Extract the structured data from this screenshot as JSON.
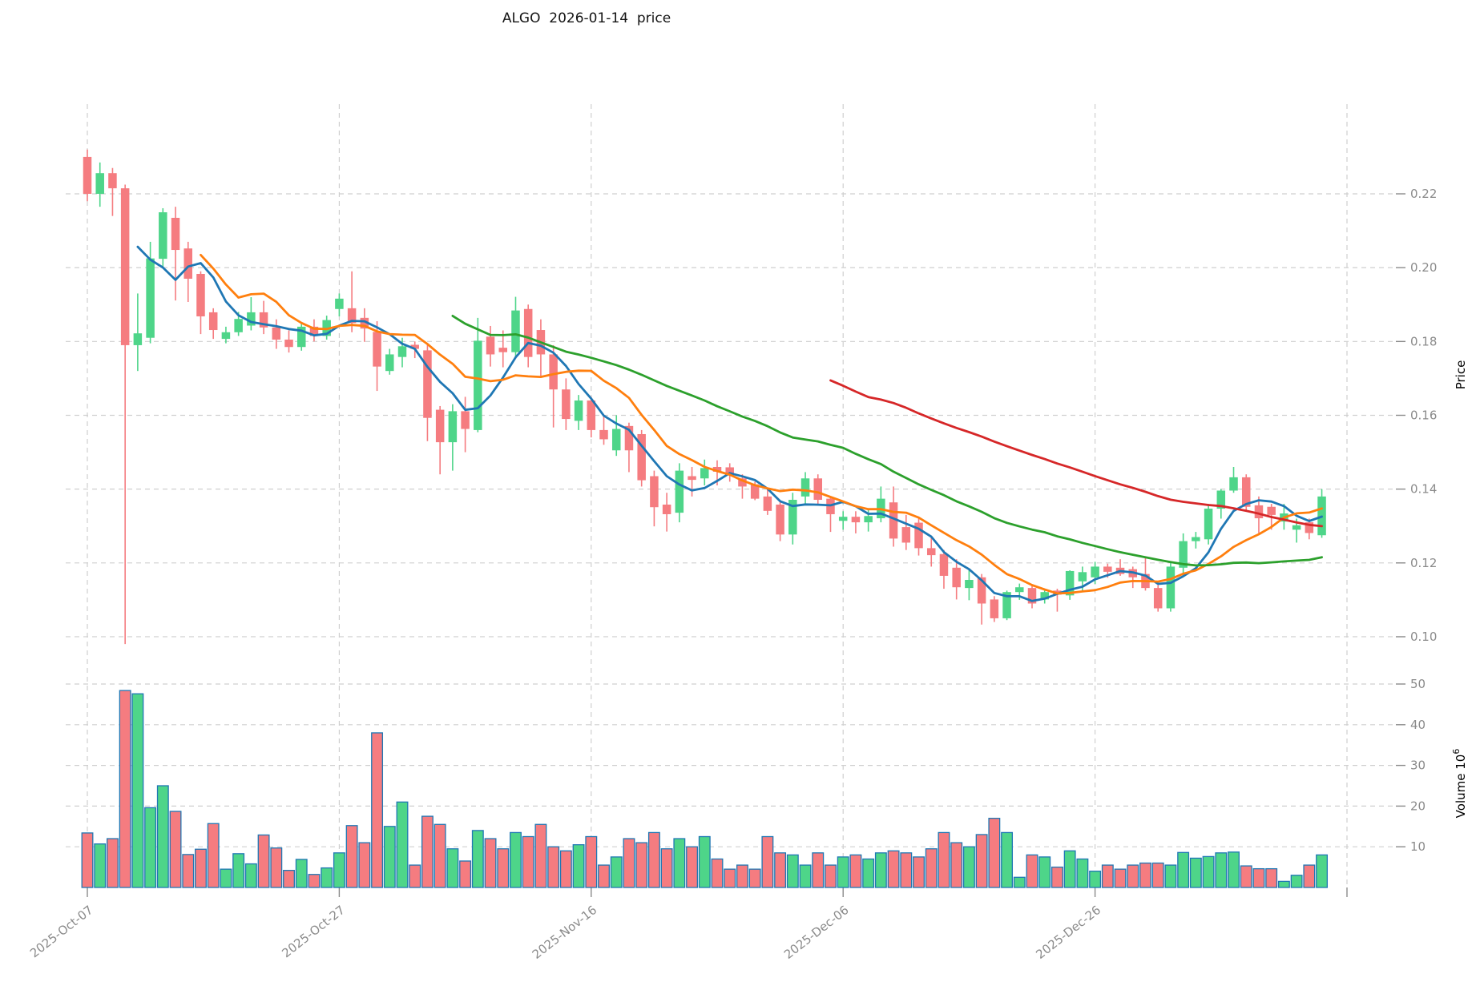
{
  "title": "ALGO  2026-01-14  price",
  "axes": {
    "price_label": "Price",
    "volume_label_base": "Volume  10",
    "volume_label_exp": "6",
    "price_ticks": [
      0.22,
      0.2,
      0.18,
      0.16,
      0.14,
      0.12,
      0.1
    ],
    "volume_ticks": [
      50,
      40,
      30,
      20,
      10
    ],
    "x_tick_days": [
      0,
      20,
      40,
      60,
      80,
      100
    ],
    "x_tick_labels": [
      "2025-Oct-07",
      "2025-Oct-27",
      "2025-Nov-16",
      "2025-Dec-06",
      "2025-Dec-26",
      ""
    ]
  },
  "colors": {
    "up": "#4ed589",
    "down": "#f57c80",
    "ma5": "#1f77b4",
    "ma10": "#ff7f0e",
    "ma30": "#2ca02c",
    "ma60": "#d62728",
    "volume_edge": "#1f77b4",
    "grid": "#cfcfcf",
    "tick_text": "#8b8b8b",
    "title_text": "#141414"
  },
  "chart_data": {
    "type": "candlestick+volume",
    "title": "ALGO  2026-01-14  price",
    "ylabel_price": "Price",
    "ylabel_volume": "Volume 10^6",
    "price_ylim": [
      0.095,
      0.2445
    ],
    "volume_unit": "millions",
    "ma_windows": [
      5,
      10,
      30,
      60
    ],
    "legend": "none",
    "grid": "dashed",
    "dates": [
      "2025-10-07",
      "2025-10-08",
      "2025-10-09",
      "2025-10-10",
      "2025-10-11",
      "2025-10-12",
      "2025-10-13",
      "2025-10-14",
      "2025-10-15",
      "2025-10-16",
      "2025-10-17",
      "2025-10-18",
      "2025-10-19",
      "2025-10-20",
      "2025-10-21",
      "2025-10-22",
      "2025-10-23",
      "2025-10-24",
      "2025-10-25",
      "2025-10-26",
      "2025-10-27",
      "2025-10-28",
      "2025-10-29",
      "2025-10-30",
      "2025-10-31",
      "2025-11-01",
      "2025-11-02",
      "2025-11-03",
      "2025-11-04",
      "2025-11-05",
      "2025-11-06",
      "2025-11-07",
      "2025-11-08",
      "2025-11-09",
      "2025-11-10",
      "2025-11-11",
      "2025-11-12",
      "2025-11-13",
      "2025-11-14",
      "2025-11-15",
      "2025-11-16",
      "2025-11-17",
      "2025-11-18",
      "2025-11-19",
      "2025-11-20",
      "2025-11-21",
      "2025-11-22",
      "2025-11-23",
      "2025-11-24",
      "2025-11-25",
      "2025-11-26",
      "2025-11-27",
      "2025-11-28",
      "2025-11-29",
      "2025-11-30",
      "2025-12-01",
      "2025-12-02",
      "2025-12-03",
      "2025-12-04",
      "2025-12-05",
      "2025-12-06",
      "2025-12-07",
      "2025-12-08",
      "2025-12-09",
      "2025-12-10",
      "2025-12-11",
      "2025-12-12",
      "2025-12-13",
      "2025-12-14",
      "2025-12-15",
      "2025-12-16",
      "2025-12-17",
      "2025-12-18",
      "2025-12-19",
      "2025-12-20",
      "2025-12-21",
      "2025-12-22",
      "2025-12-23",
      "2025-12-24",
      "2025-12-25",
      "2025-12-26",
      "2025-12-27",
      "2025-12-28",
      "2025-12-29",
      "2025-12-30",
      "2025-12-31",
      "2026-01-01",
      "2026-01-02",
      "2026-01-03",
      "2026-01-04",
      "2026-01-05",
      "2026-01-06",
      "2026-01-07",
      "2026-01-08",
      "2026-01-09",
      "2026-01-10",
      "2026-01-11",
      "2026-01-12",
      "2026-01-13"
    ],
    "ohlc": [
      [
        0.23,
        0.232,
        0.218,
        0.22
      ],
      [
        0.22,
        0.2285,
        0.2165,
        0.2256
      ],
      [
        0.2256,
        0.227,
        0.214,
        0.2215
      ],
      [
        0.2215,
        0.2225,
        0.098,
        0.179
      ],
      [
        0.179,
        0.193,
        0.172,
        0.1822
      ],
      [
        0.181,
        0.207,
        0.1795,
        0.2025
      ],
      [
        0.2024,
        0.2161,
        0.2,
        0.215
      ],
      [
        0.2135,
        0.2165,
        0.1911,
        0.2048
      ],
      [
        0.2052,
        0.207,
        0.1907,
        0.197
      ],
      [
        0.1983,
        0.199,
        0.182,
        0.1868
      ],
      [
        0.1879,
        0.189,
        0.1807,
        0.1831
      ],
      [
        0.1807,
        0.184,
        0.1795,
        0.1825
      ],
      [
        0.1825,
        0.188,
        0.1815,
        0.1861
      ],
      [
        0.1843,
        0.192,
        0.183,
        0.1879
      ],
      [
        0.1879,
        0.191,
        0.182,
        0.1838
      ],
      [
        0.1838,
        0.186,
        0.178,
        0.1805
      ],
      [
        0.1805,
        0.183,
        0.177,
        0.1785
      ],
      [
        0.1785,
        0.185,
        0.1775,
        0.184
      ],
      [
        0.184,
        0.186,
        0.18,
        0.1815
      ],
      [
        0.1815,
        0.187,
        0.1805,
        0.1858
      ],
      [
        0.1888,
        0.193,
        0.1868,
        0.1916
      ],
      [
        0.189,
        0.199,
        0.1825,
        0.185
      ],
      [
        0.1864,
        0.189,
        0.1799,
        0.1835
      ],
      [
        0.1826,
        0.1855,
        0.1666,
        0.1732
      ],
      [
        0.172,
        0.178,
        0.171,
        0.1765
      ],
      [
        0.1758,
        0.181,
        0.173,
        0.1787
      ],
      [
        0.1791,
        0.18,
        0.1755,
        0.178
      ],
      [
        0.1776,
        0.179,
        0.153,
        0.1593
      ],
      [
        0.1615,
        0.1625,
        0.144,
        0.1527
      ],
      [
        0.1527,
        0.163,
        0.145,
        0.1611
      ],
      [
        0.1611,
        0.165,
        0.15,
        0.1563
      ],
      [
        0.156,
        0.1864,
        0.1554,
        0.1802
      ],
      [
        0.1813,
        0.1842,
        0.1732,
        0.1765
      ],
      [
        0.1783,
        0.183,
        0.173,
        0.1771
      ],
      [
        0.1771,
        0.1921,
        0.1757,
        0.1884
      ],
      [
        0.1888,
        0.19,
        0.173,
        0.1758
      ],
      [
        0.1831,
        0.186,
        0.1703,
        0.1765
      ],
      [
        0.1765,
        0.179,
        0.1567,
        0.167
      ],
      [
        0.167,
        0.17,
        0.156,
        0.159
      ],
      [
        0.1585,
        0.1655,
        0.156,
        0.164
      ],
      [
        0.164,
        0.165,
        0.154,
        0.156
      ],
      [
        0.156,
        0.16,
        0.152,
        0.1535
      ],
      [
        0.1505,
        0.16,
        0.149,
        0.1563
      ],
      [
        0.1571,
        0.158,
        0.1446,
        0.1505
      ],
      [
        0.1549,
        0.156,
        0.1407,
        0.1424
      ],
      [
        0.1435,
        0.145,
        0.1299,
        0.1351
      ],
      [
        0.1358,
        0.139,
        0.1285,
        0.1332
      ],
      [
        0.1336,
        0.147,
        0.131,
        0.145
      ],
      [
        0.1435,
        0.146,
        0.138,
        0.1425
      ],
      [
        0.1429,
        0.148,
        0.141,
        0.1457
      ],
      [
        0.146,
        0.1478,
        0.141,
        0.1447
      ],
      [
        0.1459,
        0.147,
        0.142,
        0.1437
      ],
      [
        0.1429,
        0.144,
        0.1374,
        0.1407
      ],
      [
        0.1413,
        0.142,
        0.137,
        0.1374
      ],
      [
        0.138,
        0.14,
        0.133,
        0.1341
      ],
      [
        0.1358,
        0.1365,
        0.1259,
        0.1277
      ],
      [
        0.1277,
        0.139,
        0.125,
        0.1371
      ],
      [
        0.138,
        0.1446,
        0.136,
        0.1429
      ],
      [
        0.1429,
        0.144,
        0.136,
        0.1371
      ],
      [
        0.1374,
        0.138,
        0.1284,
        0.1332
      ],
      [
        0.1314,
        0.134,
        0.129,
        0.1325
      ],
      [
        0.1325,
        0.134,
        0.128,
        0.131
      ],
      [
        0.131,
        0.1345,
        0.1285,
        0.1327
      ],
      [
        0.1321,
        0.1407,
        0.131,
        0.1374
      ],
      [
        0.1364,
        0.1407,
        0.1244,
        0.1266
      ],
      [
        0.1297,
        0.133,
        0.1235,
        0.1255
      ],
      [
        0.1309,
        0.132,
        0.122,
        0.124
      ],
      [
        0.124,
        0.127,
        0.119,
        0.1221
      ],
      [
        0.1224,
        0.1235,
        0.113,
        0.1165
      ],
      [
        0.1187,
        0.121,
        0.1101,
        0.1134
      ],
      [
        0.1132,
        0.1185,
        0.1099,
        0.1154
      ],
      [
        0.1161,
        0.117,
        0.1033,
        0.109
      ],
      [
        0.1101,
        0.111,
        0.104,
        0.105
      ],
      [
        0.105,
        0.1125,
        0.1045,
        0.1121
      ],
      [
        0.1121,
        0.1144,
        0.11,
        0.1134
      ],
      [
        0.1132,
        0.114,
        0.1077,
        0.109
      ],
      [
        0.1101,
        0.1125,
        0.109,
        0.1121
      ],
      [
        0.1125,
        0.113,
        0.1068,
        0.1114
      ],
      [
        0.1112,
        0.118,
        0.11,
        0.1178
      ],
      [
        0.115,
        0.119,
        0.1125,
        0.1175
      ],
      [
        0.1161,
        0.1203,
        0.1143,
        0.119
      ],
      [
        0.119,
        0.1198,
        0.116,
        0.1176
      ],
      [
        0.1187,
        0.121,
        0.1165,
        0.117
      ],
      [
        0.1183,
        0.119,
        0.1132,
        0.1161
      ],
      [
        0.117,
        0.1215,
        0.1125,
        0.1132
      ],
      [
        0.1132,
        0.114,
        0.1068,
        0.1077
      ],
      [
        0.1077,
        0.1203,
        0.1068,
        0.119
      ],
      [
        0.1187,
        0.128,
        0.117,
        0.1259
      ],
      [
        0.1259,
        0.1284,
        0.1239,
        0.127
      ],
      [
        0.1264,
        0.136,
        0.125,
        0.1347
      ],
      [
        0.1347,
        0.14,
        0.132,
        0.1396
      ],
      [
        0.1396,
        0.146,
        0.139,
        0.1432
      ],
      [
        0.1432,
        0.144,
        0.134,
        0.1352
      ],
      [
        0.1356,
        0.138,
        0.1281,
        0.1321
      ],
      [
        0.1352,
        0.136,
        0.129,
        0.133
      ],
      [
        0.1312,
        0.136,
        0.129,
        0.1334
      ],
      [
        0.129,
        0.132,
        0.1255,
        0.1302
      ],
      [
        0.131,
        0.132,
        0.1264,
        0.1281
      ],
      [
        0.1275,
        0.14,
        0.1268,
        0.138
      ]
    ],
    "volume_millions": [
      13.4,
      10.7,
      12.0,
      48.4,
      47.6,
      19.6,
      25.0,
      18.7,
      8.1,
      9.4,
      15.7,
      4.5,
      8.3,
      5.8,
      12.9,
      9.7,
      4.2,
      6.9,
      3.2,
      4.8,
      8.5,
      15.2,
      11.0,
      38.0,
      15.0,
      21.0,
      5.5,
      17.5,
      15.5,
      9.5,
      6.5,
      14.0,
      12.0,
      9.5,
      13.5,
      12.5,
      15.5,
      10.0,
      9.0,
      10.5,
      12.5,
      5.5,
      7.5,
      12.0,
      11.0,
      13.5,
      9.5,
      12.0,
      10.0,
      12.5,
      7.0,
      4.5,
      5.5,
      4.5,
      12.5,
      8.5,
      8.0,
      5.5,
      8.5,
      5.5,
      7.5,
      8.0,
      7.0,
      8.5,
      9.0,
      8.5,
      7.5,
      9.5,
      13.5,
      11.0,
      10.0,
      13.0,
      17.0,
      13.5,
      2.5,
      8.0,
      7.5,
      5.0,
      9.0,
      7.0,
      4.0,
      5.5,
      4.5,
      5.5,
      6.0,
      6.0,
      5.5,
      8.6,
      7.2,
      7.6,
      8.5,
      8.7,
      5.3,
      4.6,
      4.6,
      1.5,
      3.0,
      5.5,
      8.0
    ]
  }
}
